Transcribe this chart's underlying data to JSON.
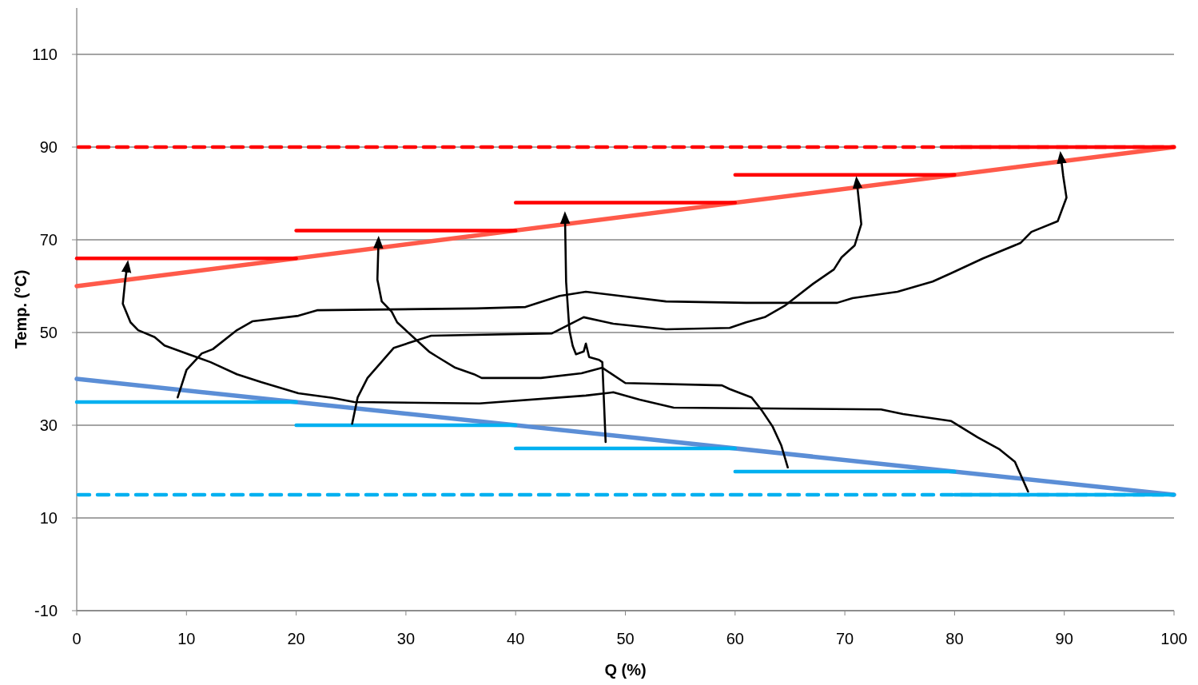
{
  "chart_data": {
    "type": "line",
    "xlabel": "Q (%)",
    "ylabel": "Temp. (°C)",
    "xlim": [
      0,
      100
    ],
    "xticks": [
      0,
      10,
      20,
      30,
      40,
      50,
      60,
      70,
      80,
      90,
      100
    ],
    "ylim": [
      -10,
      120
    ],
    "yticks": [
      -10,
      10,
      30,
      50,
      70,
      90,
      110
    ],
    "grid": "y",
    "ref_lines": [
      {
        "axis": "y",
        "value": 90,
        "color": "#ff0000",
        "line_style": "dashed"
      },
      {
        "axis": "y",
        "value": 15,
        "color": "#00b0f0",
        "line_style": "dashed"
      }
    ],
    "series": [
      {
        "color": "#ff5a4a",
        "x": [
          0,
          100
        ],
        "values": [
          60,
          90
        ]
      },
      {
        "color": "#5b8ed6",
        "x": [
          0,
          100
        ],
        "values": [
          40,
          15
        ]
      },
      {
        "color": "#ff0000",
        "x": [
          0,
          20
        ],
        "values": [
          66,
          66
        ]
      },
      {
        "color": "#ff0000",
        "x": [
          20,
          40
        ],
        "values": [
          72,
          72
        ]
      },
      {
        "color": "#ff0000",
        "x": [
          40,
          60
        ],
        "values": [
          78,
          78
        ]
      },
      {
        "color": "#ff0000",
        "x": [
          60,
          80
        ],
        "values": [
          84,
          84
        ]
      },
      {
        "color": "#ff0000",
        "x": [
          80,
          100
        ],
        "values": [
          90,
          90
        ]
      },
      {
        "color": "#00b0f0",
        "x": [
          0,
          20
        ],
        "values": [
          35,
          35
        ]
      },
      {
        "color": "#00b0f0",
        "x": [
          20,
          40
        ],
        "values": [
          30,
          30
        ]
      },
      {
        "color": "#00b0f0",
        "x": [
          40,
          60
        ],
        "values": [
          25,
          25
        ]
      },
      {
        "color": "#00b0f0",
        "x": [
          60,
          80
        ],
        "values": [
          20,
          20
        ]
      },
      {
        "color": "#00b0f0",
        "x": [
          80,
          100
        ],
        "values": [
          15,
          15
        ]
      },
      {
        "color": "#000000",
        "x": [
          9.2,
          10.0,
          11.4,
          12.4,
          14.6,
          16.0,
          20.2,
          21.9,
          36.4,
          40.9,
          44.0,
          46.4,
          53.7,
          61.0,
          69.3,
          70.7,
          74.8,
          78.0,
          79.7,
          82.6,
          86.0,
          87.0,
          89.4,
          90.2,
          89.9,
          89.7
        ],
        "values": [
          36.0,
          41.9,
          45.5,
          46.4,
          50.5,
          52.4,
          53.6,
          54.8,
          55.2,
          55.5,
          57.9,
          58.8,
          56.7,
          56.4,
          56.4,
          57.4,
          58.8,
          61.0,
          62.8,
          66.0,
          69.3,
          71.7,
          74.0,
          79.1,
          83.8,
          87.8
        ]
      },
      {
        "color": "#000000",
        "x": [
          86.7,
          85.5,
          84.1,
          82.1,
          79.7,
          75.3,
          73.3,
          54.4,
          51.3,
          48.9,
          46.4,
          36.7,
          25.3,
          23.3,
          20.2,
          16.8,
          14.6,
          12.2,
          10.2,
          8.0,
          7.1,
          5.6,
          4.9,
          4.2,
          4.4,
          4.6
        ],
        "values": [
          15.7,
          22.1,
          24.8,
          27.4,
          30.9,
          32.4,
          33.4,
          33.8,
          35.5,
          37.1,
          36.4,
          34.7,
          35.0,
          35.9,
          36.9,
          39.3,
          41.0,
          43.6,
          45.3,
          47.2,
          49.0,
          50.5,
          52.2,
          56.2,
          60.9,
          64.3
        ]
      },
      {
        "color": "#000000",
        "x": [
          25.1,
          25.6,
          26.5,
          28.9,
          32.3,
          43.3,
          46.2,
          48.9,
          53.7,
          59.5,
          61.0,
          62.7,
          64.6,
          67.1,
          69.0,
          69.7,
          70.9,
          71.5,
          71.1
        ],
        "values": [
          30.3,
          36.0,
          40.2,
          46.7,
          49.3,
          49.8,
          53.3,
          51.9,
          50.7,
          51.0,
          52.2,
          53.3,
          55.9,
          60.5,
          63.6,
          66.2,
          68.8,
          73.4,
          82.4
        ]
      },
      {
        "color": "#000000",
        "x": [
          64.8,
          64.2,
          63.4,
          62.4,
          61.5,
          59.5,
          58.8,
          50.0,
          47.9,
          46.0,
          42.3,
          36.9,
          36.2,
          34.5,
          32.9,
          32.1,
          29.2,
          28.7,
          27.8,
          27.4,
          27.5
        ],
        "values": [
          20.9,
          25.7,
          29.8,
          33.3,
          36.0,
          37.8,
          38.6,
          39.1,
          42.4,
          41.2,
          40.2,
          40.2,
          41.0,
          42.4,
          44.7,
          45.9,
          52.2,
          54.5,
          56.7,
          61.4,
          69.5
        ]
      },
      {
        "color": "#000000",
        "x": [
          48.2,
          47.9,
          47.6,
          46.7,
          46.4,
          46.2,
          45.5,
          45.2,
          44.9,
          44.6,
          44.5
        ],
        "values": [
          26.4,
          43.6,
          44.1,
          44.7,
          47.6,
          45.9,
          45.3,
          47.1,
          50.5,
          60.9,
          74.8
        ]
      }
    ]
  }
}
